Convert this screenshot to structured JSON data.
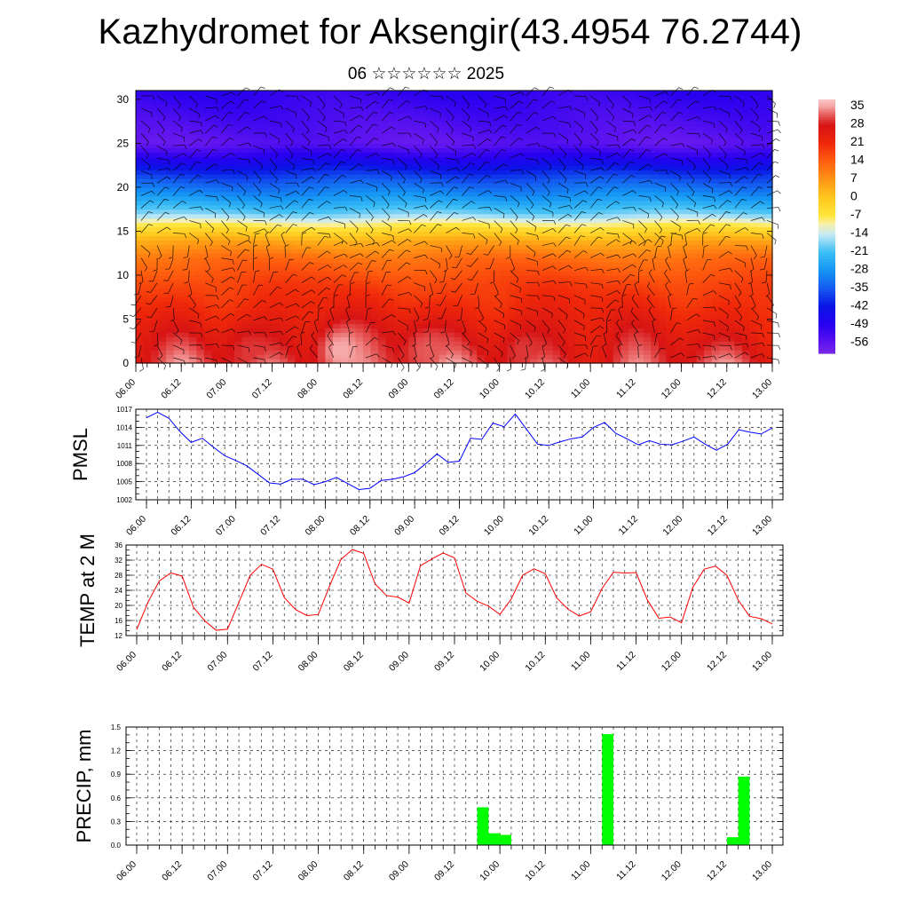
{
  "header": {
    "title": "Kazhydromet for Aksengir(43.4954 76.2744)",
    "subtitle": "06 ☆☆☆☆☆☆ 2025"
  },
  "colors": {
    "pmsl_line": "#0000ff",
    "temp_line": "#ff0000",
    "precip_bar": "#00ff00",
    "frame": "#000000"
  },
  "chart_data": [
    {
      "type": "heatmap",
      "name": "vertical-temperature-wind-section",
      "x_tick_labels": [
        "06.00",
        "06.12",
        "07.00",
        "07.12",
        "08.00",
        "08.12",
        "09.00",
        "09.12",
        "10.00",
        "10.12",
        "11.00",
        "11.12",
        "12.00",
        "12.12",
        "13.00"
      ],
      "y_tick_labels": [
        "0",
        "5",
        "10",
        "15",
        "20",
        "25",
        "30"
      ],
      "ylim": [
        0,
        31
      ],
      "colorbar_labels": [
        "35",
        "28",
        "21",
        "14",
        "7",
        "0",
        "-7",
        "-14",
        "-21",
        "-28",
        "-35",
        "-42",
        "-49",
        "-56"
      ],
      "colorbar_range": [
        -60,
        38
      ],
      "temperature_profile": [
        {
          "height": 0,
          "value": 30
        },
        {
          "height": 3,
          "value": 26
        },
        {
          "height": 6,
          "value": 22
        },
        {
          "height": 9,
          "value": 18
        },
        {
          "height": 12,
          "value": 12
        },
        {
          "height": 14,
          "value": 4
        },
        {
          "height": 15.5,
          "value": -6
        },
        {
          "height": 17,
          "value": -18
        },
        {
          "height": 19,
          "value": -28
        },
        {
          "height": 21,
          "value": -36
        },
        {
          "height": 23,
          "value": -46
        },
        {
          "height": 25,
          "value": -56
        },
        {
          "height": 27,
          "value": -54
        },
        {
          "height": 31,
          "value": -50
        }
      ],
      "warm_cores": [
        {
          "x": 8.25,
          "height": 1.5,
          "value": 36
        },
        {
          "x": 9.2,
          "height": 1.5,
          "value": 32
        },
        {
          "x": 7.25,
          "height": 1.5,
          "value": 30
        },
        {
          "x": 10.25,
          "height": 1.5,
          "value": 30
        }
      ],
      "wind_barbs": true
    },
    {
      "type": "line",
      "name": "PMSL",
      "ylabel": "PMSL",
      "ylim": [
        1002,
        1017
      ],
      "y_tick_labels": [
        "1002",
        "1005",
        "1008",
        "1011",
        "1014",
        "1017"
      ],
      "x_tick_labels": [
        "06.00",
        "06.12",
        "07.00",
        "07.12",
        "08.00",
        "08.12",
        "09.00",
        "09.12",
        "10.00",
        "10.12",
        "11.00",
        "11.12",
        "12.00",
        "12.12",
        "13.00"
      ],
      "x_step_hours": 3,
      "values": [
        1015.6,
        1016.5,
        1015.5,
        1013.3,
        1011.5,
        1012.2,
        1010.7,
        1009.3,
        1008.5,
        1007.6,
        1006.2,
        1004.8,
        1004.6,
        1005.4,
        1005.4,
        1004.5,
        1005.0,
        1005.7,
        1004.7,
        1003.7,
        1003.9,
        1005.2,
        1005.4,
        1005.8,
        1006.5,
        1008.0,
        1009.6,
        1008.2,
        1008.4,
        1012.2,
        1012.0,
        1014.7,
        1014.1,
        1016.2,
        1013.7,
        1011.2,
        1011.0,
        1011.6,
        1012.1,
        1012.4,
        1014.0,
        1014.8,
        1013.0,
        1012.1,
        1011.1,
        1011.8,
        1011.2,
        1011.1,
        1011.7,
        1012.4,
        1011.2,
        1010.2,
        1011.2,
        1013.6,
        1013.2,
        1012.9,
        1013.9
      ]
    },
    {
      "type": "line",
      "name": "TEMP at 2 M",
      "ylabel": "TEMP at 2 M",
      "ylim": [
        12,
        36
      ],
      "y_tick_labels": [
        "12",
        "16",
        "20",
        "24",
        "28",
        "32",
        "36"
      ],
      "x_tick_labels": [
        "06.00",
        "06.12",
        "07.00",
        "07.12",
        "08.00",
        "08.12",
        "09.00",
        "09.12",
        "10.00",
        "10.12",
        "11.00",
        "11.12",
        "12.00",
        "12.12",
        "13.00"
      ],
      "x_step_hours": 3,
      "values": [
        13.6,
        20.9,
        26.5,
        28.6,
        27.8,
        19.5,
        15.9,
        13.4,
        13.7,
        20.8,
        28.0,
        30.9,
        29.6,
        22.1,
        18.9,
        17.3,
        17.6,
        25.2,
        32.2,
        34.8,
        33.8,
        25.7,
        22.6,
        22.2,
        20.6,
        30.5,
        32.3,
        33.9,
        32.6,
        23.3,
        21.1,
        19.8,
        17.6,
        21.7,
        28.0,
        29.7,
        28.4,
        22.0,
        19.0,
        17.2,
        18.3,
        24.5,
        28.8,
        28.6,
        28.7,
        21.4,
        16.6,
        16.9,
        15.4,
        24.8,
        29.6,
        30.4,
        28.0,
        21.4,
        17.1,
        16.5,
        15.1
      ]
    },
    {
      "type": "bar",
      "name": "PRECIP, mm",
      "ylabel": "PRECIP, mm",
      "ylim": [
        0,
        1.5
      ],
      "y_tick_labels": [
        "0.0",
        "0.3",
        "0.6",
        "0.9",
        "1.2",
        "1.5"
      ],
      "x_tick_labels": [
        "06.00",
        "06.12",
        "07.00",
        "07.12",
        "08.00",
        "08.12",
        "09.00",
        "09.12",
        "10.00",
        "10.12",
        "11.00",
        "11.12",
        "12.00",
        "12.12",
        "13.00"
      ],
      "x_step_hours": 3,
      "values": [
        0,
        0,
        0,
        0,
        0,
        0,
        0,
        0,
        0,
        0,
        0,
        0,
        0,
        0,
        0,
        0,
        0,
        0,
        0,
        0,
        0,
        0,
        0,
        0,
        0,
        0,
        0,
        0,
        0,
        0,
        0.48,
        0.15,
        0.13,
        0,
        0,
        0,
        0,
        0,
        0,
        0,
        0,
        1.41,
        0,
        0,
        0,
        0,
        0,
        0,
        0,
        0,
        0,
        0,
        0.1,
        0.87,
        0,
        0,
        0
      ]
    }
  ]
}
